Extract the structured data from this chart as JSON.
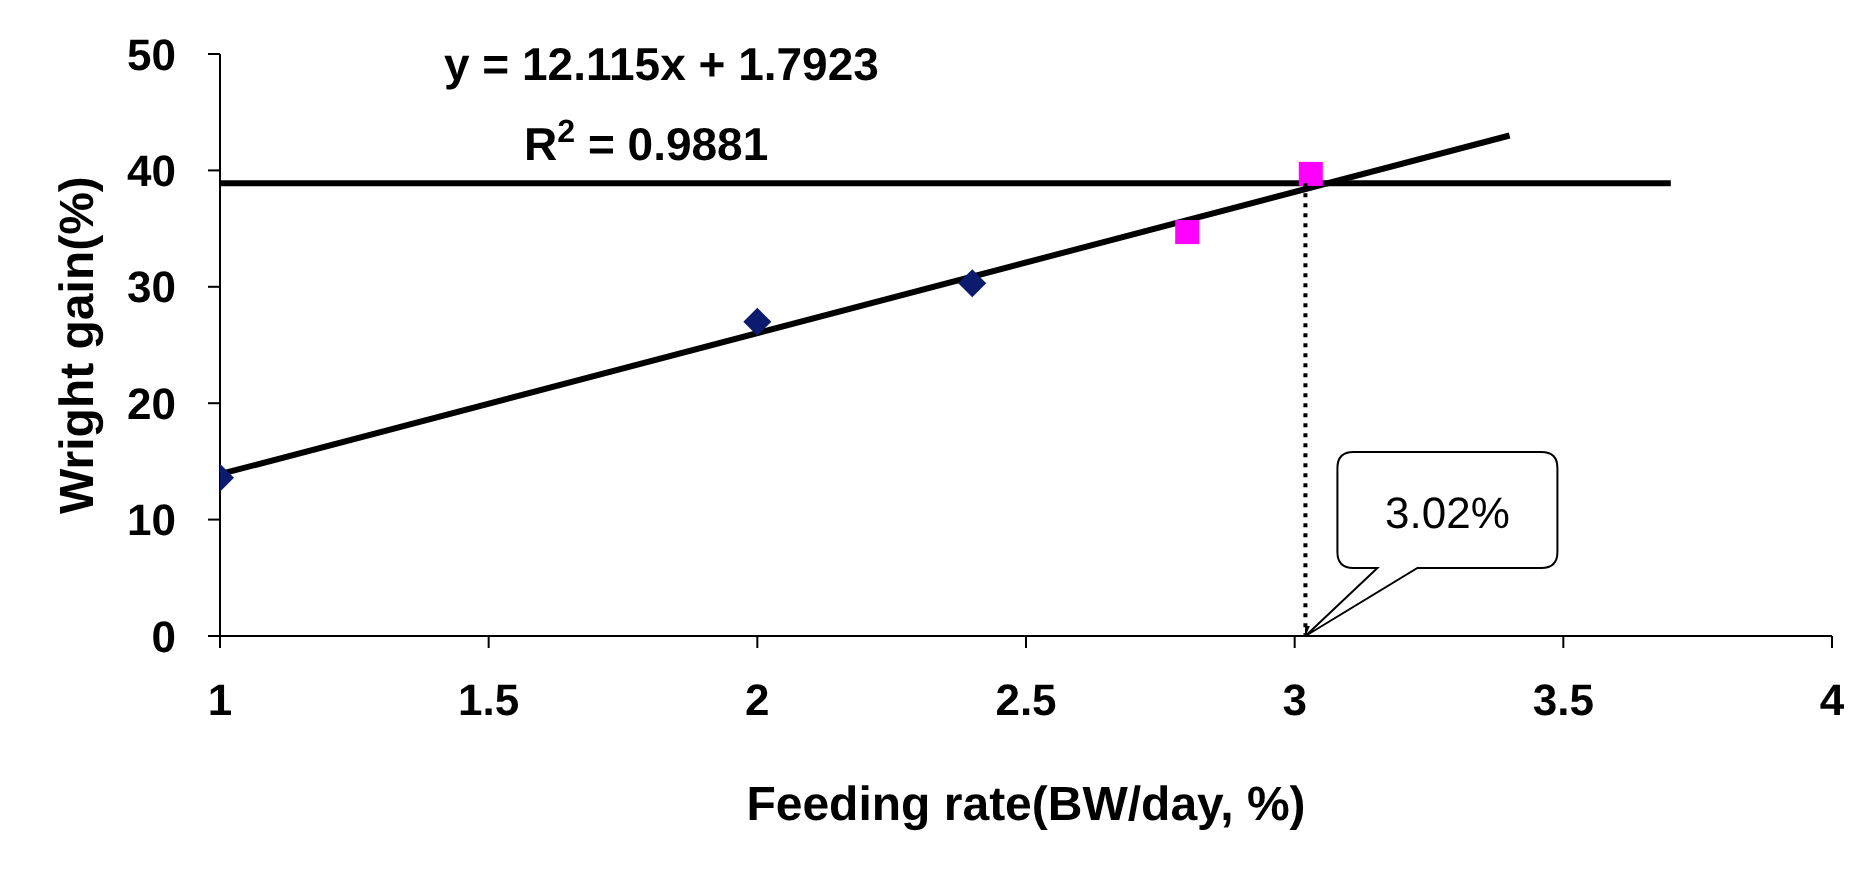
{
  "chart_data": {
    "type": "scatter",
    "xlabel": "Feeding rate(BW/day, %)",
    "ylabel": "Wright gain(%)",
    "xlim": [
      1,
      4
    ],
    "xticks": [
      1,
      1.5,
      2,
      2.5,
      3,
      3.5,
      4
    ],
    "ylim": [
      0,
      50
    ],
    "yticks": [
      0,
      10,
      20,
      30,
      40,
      50
    ],
    "series": [
      {
        "color": "#0d1b6e",
        "marker": "diamond",
        "x": [
          1,
          2,
          2.4
        ],
        "values": [
          13.6,
          27,
          30.3
        ]
      },
      {
        "color": "#ff00ff",
        "marker": "square",
        "x": [
          2.8,
          3.03
        ],
        "values": [
          34.7,
          39.7
        ]
      },
      {
        "type": "line",
        "color": "#000000",
        "marker": "none",
        "line_style": "solid",
        "x": [
          1,
          3.4
        ],
        "values": [
          13.9,
          43.0
        ]
      },
      {
        "type": "line",
        "color": "#000000",
        "marker": "none",
        "line_style": "solid",
        "x": [
          1,
          3.7
        ],
        "values": [
          38.9,
          38.9
        ]
      }
    ],
    "ref_lines": [
      {
        "axis": "x",
        "value": 3.02,
        "label": "3.02%",
        "line_style": "dotted",
        "color": "#000000"
      }
    ],
    "annotations": [
      "y = 12.115x + 1.7923",
      "R$^{2}$ = 0.9881"
    ]
  }
}
